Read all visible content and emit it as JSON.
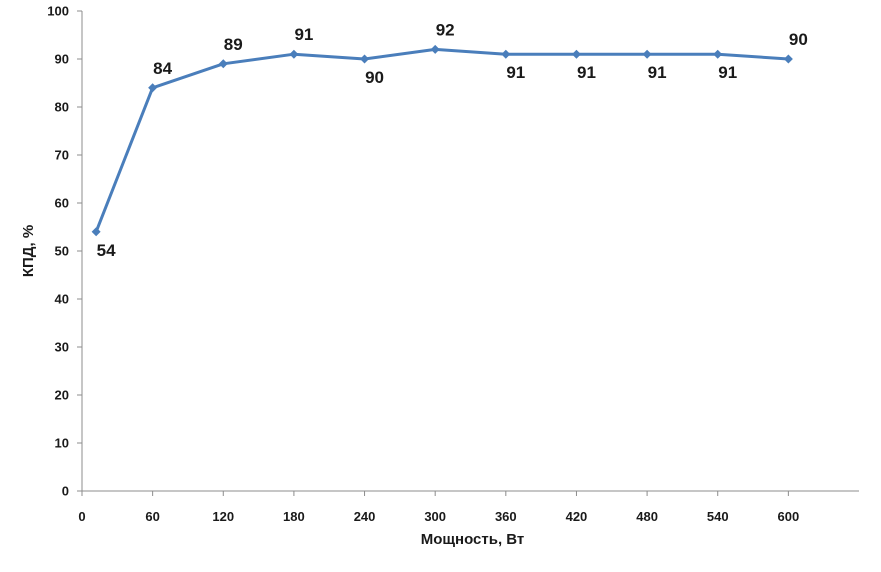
{
  "chart_data": {
    "type": "line",
    "xlabel": "Мощность, Вт",
    "ylabel": "КПД, %",
    "xlim": [
      0,
      660
    ],
    "ylim": [
      0,
      100
    ],
    "x_ticks": [
      0,
      60,
      120,
      180,
      240,
      300,
      360,
      420,
      480,
      540,
      600
    ],
    "y_ticks": [
      0,
      10,
      20,
      30,
      40,
      50,
      60,
      70,
      80,
      90,
      100
    ],
    "grid": false,
    "legend": "none",
    "series": [
      {
        "color": "#4a7ebb",
        "marker": "diamond",
        "points": [
          {
            "x": 12,
            "y": 54,
            "label": "54",
            "label_pos": "below"
          },
          {
            "x": 60,
            "y": 84,
            "label": "84",
            "label_pos": "above"
          },
          {
            "x": 120,
            "y": 89,
            "label": "89",
            "label_pos": "above"
          },
          {
            "x": 180,
            "y": 91,
            "label": "91",
            "label_pos": "above"
          },
          {
            "x": 240,
            "y": 90,
            "label": "90",
            "label_pos": "below"
          },
          {
            "x": 300,
            "y": 92,
            "label": "92",
            "label_pos": "above"
          },
          {
            "x": 360,
            "y": 91,
            "label": "91",
            "label_pos": "below"
          },
          {
            "x": 420,
            "y": 91,
            "label": "91",
            "label_pos": "below"
          },
          {
            "x": 480,
            "y": 91,
            "label": "91",
            "label_pos": "below"
          },
          {
            "x": 540,
            "y": 91,
            "label": "91",
            "label_pos": "below"
          },
          {
            "x": 600,
            "y": 90,
            "label": "90",
            "label_pos": "above"
          }
        ]
      }
    ]
  }
}
